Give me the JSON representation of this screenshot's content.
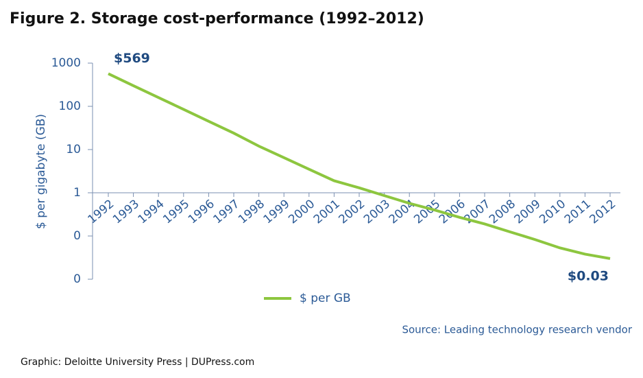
{
  "chart_data": {
    "type": "line",
    "title": "Figure 2. Storage cost-performance (1992–2012)",
    "y_label": "$ per gigabyte (GB)",
    "source": "Source: Leading technology research vendor",
    "footer": "Graphic: Deloitte University Press  |  DUPress.com",
    "categories": [
      "1992",
      "1993",
      "1994",
      "1995",
      "1996",
      "1997",
      "1998",
      "1999",
      "2000",
      "2001",
      "2002",
      "2003",
      "2004",
      "2005",
      "2006",
      "2007",
      "2008",
      "2009",
      "2010",
      "2011",
      "2012"
    ],
    "series": [
      {
        "name": "$ per GB",
        "color": "#8dc63f",
        "values": [
          569,
          300,
          160,
          85,
          45,
          24,
          12,
          6.5,
          3.5,
          1.9,
          1.3,
          0.86,
          0.57,
          0.4,
          0.27,
          0.19,
          0.125,
          0.083,
          0.053,
          0.038,
          0.03
        ],
        "value_labels": [
          "$569",
          null,
          null,
          null,
          null,
          null,
          null,
          null,
          null,
          null,
          null,
          null,
          null,
          null,
          null,
          null,
          null,
          null,
          null,
          null,
          "$0.03"
        ]
      }
    ],
    "y_scale": "log",
    "ylim": [
      0.01,
      1000
    ],
    "yticks": [
      1000,
      100,
      10,
      1,
      {
        "value": 0.1,
        "label": "0"
      },
      {
        "value": 0.01,
        "label": "0"
      }
    ],
    "x_axis_at": 1,
    "grid": false
  }
}
